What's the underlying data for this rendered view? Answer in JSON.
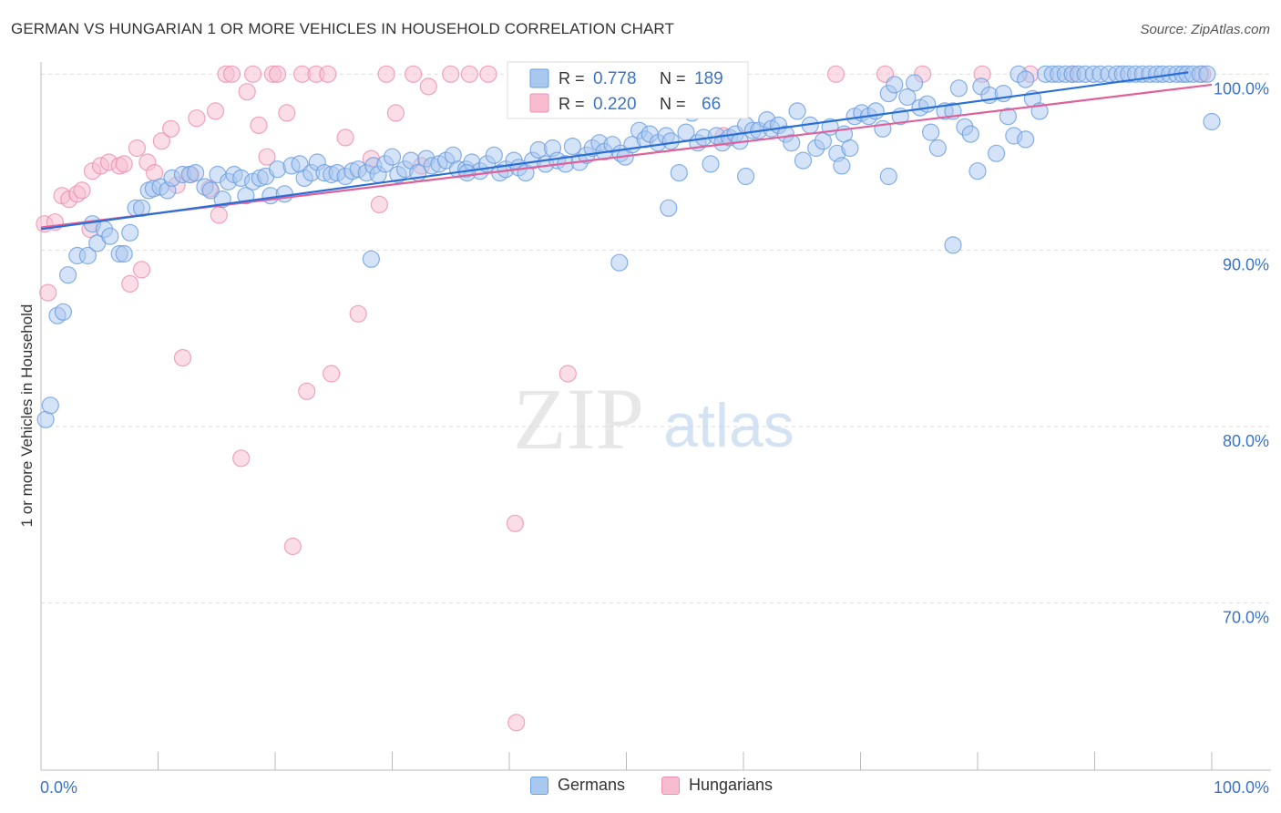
{
  "title": "GERMAN VS HUNGARIAN 1 OR MORE VEHICLES IN HOUSEHOLD CORRELATION CHART",
  "source": "Source: ZipAtlas.com",
  "watermark": {
    "zip": "ZIP",
    "atlas": "atlas"
  },
  "colors": {
    "germans_fill": "#a9c8f0",
    "germans_stroke": "#6a9ee0",
    "germans_line": "#2a6fd6",
    "hungarians_fill": "#f8bcd0",
    "hungarians_stroke": "#ee8faf",
    "hungarians_line": "#e0609a",
    "tick_label": "#3b74c8",
    "grid": "#dddddd"
  },
  "legend_top": {
    "rows": [
      {
        "r_label": "R =",
        "r_value": "0.778",
        "n_label": "N =",
        "n_value": "189",
        "series": "germans"
      },
      {
        "r_label": "R =",
        "r_value": "0.220",
        "n_label": "N =",
        "n_value": "66",
        "series": "hungarians"
      }
    ]
  },
  "legend_bottom": [
    {
      "label": "Germans",
      "series": "germans"
    },
    {
      "label": "Hungarians",
      "series": "hungarians"
    }
  ],
  "chart_data": {
    "type": "scatter",
    "title": "GERMAN VS HUNGARIAN 1 OR MORE VEHICLES IN HOUSEHOLD CORRELATION CHART",
    "xlabel": "",
    "ylabel": "1 or more Vehicles in Household",
    "xlim": [
      0,
      100
    ],
    "ylim": [
      60.5,
      101
    ],
    "x_tick_labels": [
      {
        "value": 0,
        "label": "0.0%"
      },
      {
        "value": 100,
        "label": "100.0%"
      }
    ],
    "y_tick_labels": [
      {
        "value": 100,
        "label": "100.0%"
      },
      {
        "value": 90,
        "label": "90.0%"
      },
      {
        "value": 80,
        "label": "80.0%"
      },
      {
        "value": 70,
        "label": "70.0%"
      }
    ],
    "x_minor_ticks": [
      0,
      10,
      20,
      30,
      40,
      50,
      60,
      70,
      80,
      90,
      100
    ],
    "grid": true,
    "legend": "top-center",
    "series": [
      {
        "name": "Germans",
        "color": "#a9c8f0",
        "trend": {
          "x": [
            0,
            98
          ],
          "y": [
            91.2,
            100.1
          ]
        },
        "points": [
          [
            0.4,
            80.4
          ],
          [
            0.8,
            81.2
          ],
          [
            1.4,
            86.3
          ],
          [
            1.9,
            86.5
          ],
          [
            2.3,
            88.6
          ],
          [
            3.1,
            89.7
          ],
          [
            4,
            89.7
          ],
          [
            4.4,
            91.5
          ],
          [
            4.8,
            90.4
          ],
          [
            5.4,
            91.2
          ],
          [
            5.9,
            90.8
          ],
          [
            6.7,
            89.8
          ],
          [
            7.1,
            89.8
          ],
          [
            7.6,
            91
          ],
          [
            8.1,
            92.4
          ],
          [
            8.6,
            92.4
          ],
          [
            9.2,
            93.4
          ],
          [
            9.6,
            93.5
          ],
          [
            10.2,
            93.6
          ],
          [
            10.8,
            93.4
          ],
          [
            11.2,
            94.1
          ],
          [
            12.1,
            94.3
          ],
          [
            12.7,
            94.3
          ],
          [
            13.2,
            94.4
          ],
          [
            14,
            93.6
          ],
          [
            14.5,
            93.4
          ],
          [
            15.1,
            94.3
          ],
          [
            15.5,
            92.9
          ],
          [
            16,
            93.9
          ],
          [
            16.5,
            94.3
          ],
          [
            17.1,
            94.1
          ],
          [
            17.5,
            93.1
          ],
          [
            18.1,
            93.9
          ],
          [
            18.7,
            94.1
          ],
          [
            19.2,
            94.2
          ],
          [
            19.6,
            93.1
          ],
          [
            20.2,
            94.6
          ],
          [
            20.8,
            93.2
          ],
          [
            21.4,
            94.8
          ],
          [
            22.1,
            94.9
          ],
          [
            22.5,
            94.1
          ],
          [
            23.1,
            94.4
          ],
          [
            23.6,
            95
          ],
          [
            24.2,
            94.4
          ],
          [
            24.8,
            94.3
          ],
          [
            25.3,
            94.4
          ],
          [
            26,
            94.2
          ],
          [
            26.6,
            94.5
          ],
          [
            27.1,
            94.6
          ],
          [
            27.8,
            94.4
          ],
          [
            28.4,
            94.8
          ],
          [
            28.8,
            94.3
          ],
          [
            29.4,
            94.9
          ],
          [
            30,
            95.3
          ],
          [
            30.5,
            94.3
          ],
          [
            31.1,
            94.6
          ],
          [
            31.6,
            95.1
          ],
          [
            32.2,
            94.4
          ],
          [
            32.9,
            95.2
          ],
          [
            33.4,
            94.8
          ],
          [
            34,
            94.9
          ],
          [
            34.6,
            95.1
          ],
          [
            35.2,
            95.4
          ],
          [
            35.6,
            94.6
          ],
          [
            36.3,
            94.6
          ],
          [
            36.8,
            95
          ],
          [
            37.5,
            94.5
          ],
          [
            38.1,
            94.9
          ],
          [
            38.7,
            95.4
          ],
          [
            39.2,
            94.4
          ],
          [
            39.7,
            94.6
          ],
          [
            40.4,
            95.1
          ],
          [
            40.8,
            94.7
          ],
          [
            41.4,
            94.4
          ],
          [
            42,
            95.1
          ],
          [
            42.5,
            95.7
          ],
          [
            43.1,
            94.9
          ],
          [
            43.7,
            95.8
          ],
          [
            44.1,
            95.1
          ],
          [
            44.8,
            94.9
          ],
          [
            45.4,
            95.9
          ],
          [
            46,
            95
          ],
          [
            46.6,
            95.4
          ],
          [
            47.1,
            95.8
          ],
          [
            47.7,
            96.1
          ],
          [
            48.1,
            95.6
          ],
          [
            48.8,
            96
          ],
          [
            49.5,
            95.5
          ],
          [
            49.9,
            95.3
          ],
          [
            50.5,
            96
          ],
          [
            51.1,
            96.8
          ],
          [
            51.6,
            96.3
          ],
          [
            52,
            96.6
          ],
          [
            52.7,
            96.1
          ],
          [
            53.4,
            96.5
          ],
          [
            53.8,
            96.2
          ],
          [
            54.5,
            94.4
          ],
          [
            55.1,
            96.7
          ],
          [
            55.6,
            97.8
          ],
          [
            56.1,
            96.1
          ],
          [
            56.6,
            96.4
          ],
          [
            57.2,
            94.9
          ],
          [
            57.7,
            96.5
          ],
          [
            58.2,
            96.1
          ],
          [
            58.8,
            96.4
          ],
          [
            59.3,
            96.6
          ],
          [
            59.7,
            96.2
          ],
          [
            60.2,
            97.1
          ],
          [
            60.8,
            96.8
          ],
          [
            61.3,
            96.8
          ],
          [
            62,
            97.4
          ],
          [
            62.4,
            96.9
          ],
          [
            63,
            97.1
          ],
          [
            63.6,
            96.6
          ],
          [
            64.1,
            96.1
          ],
          [
            64.6,
            97.9
          ],
          [
            65.1,
            95.1
          ],
          [
            65.7,
            97.1
          ],
          [
            66.2,
            95.8
          ],
          [
            66.8,
            96.2
          ],
          [
            67.4,
            97
          ],
          [
            68,
            95.5
          ],
          [
            68.6,
            96.6
          ],
          [
            69.1,
            95.8
          ],
          [
            69.5,
            97.6
          ],
          [
            70.1,
            97.8
          ],
          [
            70.7,
            97.6
          ],
          [
            71.3,
            97.9
          ],
          [
            71.9,
            96.9
          ],
          [
            72.4,
            98.9
          ],
          [
            72.9,
            99.4
          ],
          [
            73.4,
            97.6
          ],
          [
            74,
            98.7
          ],
          [
            74.6,
            99.5
          ],
          [
            75.1,
            98.1
          ],
          [
            75.7,
            98.3
          ],
          [
            76,
            96.7
          ],
          [
            76.6,
            95.8
          ],
          [
            77.2,
            97.9
          ],
          [
            77.9,
            97.9
          ],
          [
            78.4,
            99.2
          ],
          [
            78.9,
            97
          ],
          [
            79.4,
            96.6
          ],
          [
            80,
            94.5
          ],
          [
            80.3,
            99.3
          ],
          [
            81,
            98.8
          ],
          [
            81.6,
            95.5
          ],
          [
            82.2,
            98.9
          ],
          [
            82.6,
            97.6
          ],
          [
            83.1,
            96.5
          ],
          [
            83.5,
            100
          ],
          [
            84.1,
            99.7
          ],
          [
            84.7,
            98.6
          ],
          [
            85.3,
            97.9
          ],
          [
            85.8,
            100
          ],
          [
            86.4,
            100
          ],
          [
            86.9,
            100
          ],
          [
            87.5,
            100
          ],
          [
            88.1,
            100
          ],
          [
            88.6,
            100
          ],
          [
            89.2,
            100
          ],
          [
            89.9,
            100
          ],
          [
            90.5,
            100
          ],
          [
            91.2,
            100
          ],
          [
            91.9,
            100
          ],
          [
            92.4,
            100
          ],
          [
            92.9,
            100
          ],
          [
            93.5,
            100
          ],
          [
            94.1,
            100
          ],
          [
            94.7,
            100
          ],
          [
            95.3,
            100
          ],
          [
            95.8,
            100
          ],
          [
            96.4,
            100
          ],
          [
            97,
            100
          ],
          [
            97.5,
            100
          ],
          [
            97.9,
            100
          ],
          [
            98.4,
            100
          ],
          [
            99,
            100
          ],
          [
            99.6,
            100
          ],
          [
            100,
            97.3
          ],
          [
            36.4,
            94.4
          ],
          [
            28.2,
            89.5
          ],
          [
            77.9,
            90.3
          ],
          [
            72.4,
            94.2
          ],
          [
            53.6,
            92.4
          ],
          [
            68.4,
            94.8
          ],
          [
            60.2,
            94.2
          ],
          [
            49.4,
            89.3
          ],
          [
            84.1,
            96.3
          ]
        ]
      },
      {
        "name": "Hungarians",
        "color": "#f8bcd0",
        "trend": {
          "x": [
            0,
            100
          ],
          "y": [
            91.3,
            99.4
          ]
        },
        "points": [
          [
            0.3,
            91.5
          ],
          [
            0.6,
            87.6
          ],
          [
            1.2,
            91.6
          ],
          [
            1.8,
            93.1
          ],
          [
            2.4,
            92.9
          ],
          [
            3.1,
            93.2
          ],
          [
            3.5,
            93.4
          ],
          [
            4.2,
            91.2
          ],
          [
            4.4,
            94.5
          ],
          [
            5.1,
            94.8
          ],
          [
            5.8,
            95
          ],
          [
            6.7,
            94.8
          ],
          [
            7.1,
            94.9
          ],
          [
            7.6,
            88.1
          ],
          [
            8.2,
            95.8
          ],
          [
            8.6,
            88.9
          ],
          [
            9.1,
            95
          ],
          [
            9.7,
            94.4
          ],
          [
            10.3,
            96.2
          ],
          [
            11.1,
            96.9
          ],
          [
            11.6,
            93.7
          ],
          [
            12.1,
            83.9
          ],
          [
            12.8,
            94.3
          ],
          [
            13.3,
            97.5
          ],
          [
            14.4,
            93.5
          ],
          [
            14.9,
            97.9
          ],
          [
            15.2,
            92
          ],
          [
            15.8,
            100
          ],
          [
            16.3,
            100
          ],
          [
            17.1,
            78.2
          ],
          [
            17.6,
            99
          ],
          [
            18.1,
            100
          ],
          [
            18.6,
            97.1
          ],
          [
            19.3,
            95.3
          ],
          [
            19.8,
            100
          ],
          [
            20.2,
            100
          ],
          [
            21,
            97.8
          ],
          [
            21.5,
            73.2
          ],
          [
            22.3,
            100
          ],
          [
            22.7,
            82
          ],
          [
            23.5,
            100
          ],
          [
            24.5,
            100
          ],
          [
            24.8,
            83
          ],
          [
            26,
            96.4
          ],
          [
            27.1,
            86.4
          ],
          [
            28.2,
            95.2
          ],
          [
            28.9,
            92.6
          ],
          [
            29.5,
            100
          ],
          [
            30.3,
            97.8
          ],
          [
            31.8,
            100
          ],
          [
            32.5,
            94.8
          ],
          [
            33.1,
            99.3
          ],
          [
            35,
            100
          ],
          [
            36.6,
            100
          ],
          [
            38.2,
            100
          ],
          [
            40.5,
            74.5
          ],
          [
            40.6,
            63.2
          ],
          [
            45,
            83
          ],
          [
            67.9,
            100
          ],
          [
            72.1,
            100
          ],
          [
            75.3,
            100
          ],
          [
            80.4,
            100
          ],
          [
            84.5,
            100
          ],
          [
            88.1,
            100
          ],
          [
            99.2,
            100
          ],
          [
            58.3,
            96.5
          ]
        ]
      }
    ]
  }
}
